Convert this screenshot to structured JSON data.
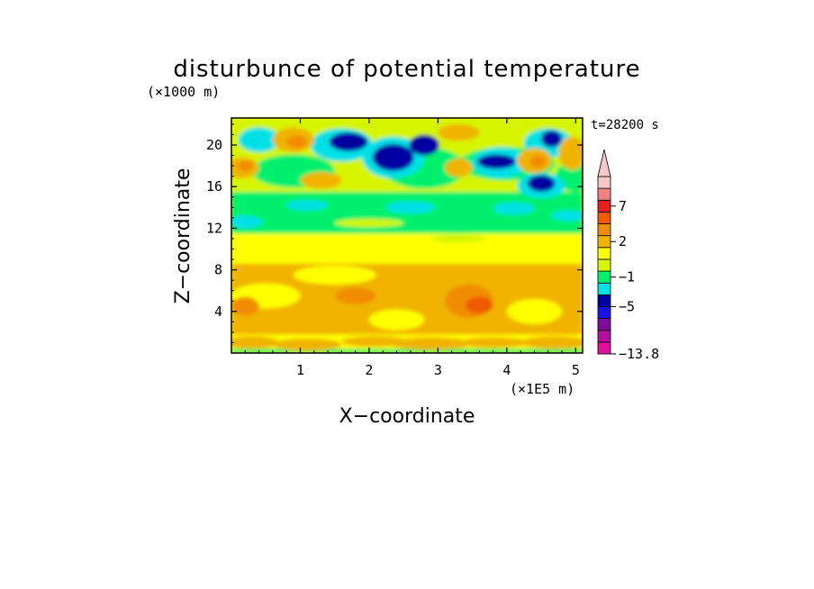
{
  "chart_data": {
    "type": "heatmap",
    "title": "disturbunce of potential temperature",
    "xlabel": "X−coordinate",
    "ylabel": "Z−coordinate",
    "x_unit": "(×1E5 m)",
    "y_unit": "(×1000 m)",
    "time_label": "t=28200 s",
    "xlim": [
      0,
      5.1
    ],
    "ylim": [
      0,
      22.6
    ],
    "x_ticks": [
      "1",
      "2",
      "3",
      "4",
      "5"
    ],
    "y_ticks": [
      "4",
      "8",
      "12",
      "16",
      "20"
    ],
    "colorbar": {
      "colors": [
        "#e0109a",
        "#b0109a",
        "#800b9a",
        "#1c14e6",
        "#0000a0",
        "#00e1e6",
        "#00f06e",
        "#d6f500",
        "#ffff00",
        "#f0b400",
        "#f08c00",
        "#f05a00",
        "#e61e1e",
        "#f58282",
        "#f7c8c8"
      ],
      "labels": [
        "7",
        "2",
        "−1",
        "−5",
        "−13.8"
      ],
      "label_values": [
        7,
        2,
        -1,
        -5,
        -13.8
      ],
      "extend_max": true
    },
    "bands": [
      {
        "z_from": 0,
        "z_to": 1.5,
        "dominant": "yellow-orange",
        "pattern": "mixed yellow and orange with thin green strip at bottom"
      },
      {
        "z_from": 1.5,
        "z_to": 8,
        "dominant": "orange",
        "pattern": "broad orange layer, warmest near x=3.4"
      },
      {
        "z_from": 8,
        "z_to": 11.5,
        "dominant": "yellow",
        "pattern": "uniform yellow"
      },
      {
        "z_from": 11.5,
        "z_to": 16,
        "dominant": "green",
        "pattern": "green with cyan patches"
      },
      {
        "z_from": 16,
        "z_to": 22.6,
        "dominant": "mixed",
        "pattern": "cyan and dark blue cold cells with orange warm cells"
      }
    ]
  }
}
